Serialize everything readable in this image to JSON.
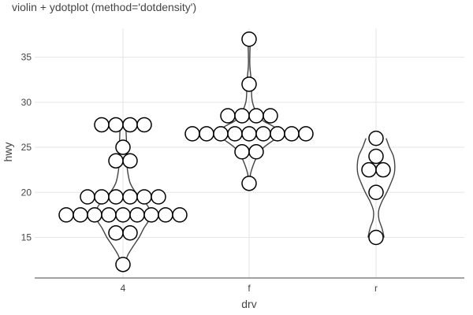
{
  "chart_data": {
    "type": "violin",
    "title": "violin + ydotplot (method='dotdensity')",
    "xlabel": "drv",
    "ylabel": "hwy",
    "categories": [
      "4",
      "f",
      "r"
    ],
    "ylim": [
      10.5,
      38.2
    ],
    "yticks": [
      15,
      20,
      25,
      30,
      35
    ],
    "grid": true,
    "legend": "none",
    "colors": {
      "grid": "#e5e5e5",
      "violin_stroke": "#444444",
      "dot_stroke": "#000000",
      "dot_fill": "#ffffff",
      "axis": "#444444"
    },
    "violins": [
      {
        "category": "4",
        "ymin": 12,
        "ymax": 27.5,
        "profile": [
          [
            12,
            0.15
          ],
          [
            13,
            0.35
          ],
          [
            14,
            0.75
          ],
          [
            15,
            1.2
          ],
          [
            16,
            1.55
          ],
          [
            17,
            1.95
          ],
          [
            18,
            2.0
          ],
          [
            19,
            1.6
          ],
          [
            20,
            0.95
          ],
          [
            21,
            0.55
          ],
          [
            22,
            0.38
          ],
          [
            23,
            0.3
          ],
          [
            24,
            0.3
          ],
          [
            25,
            0.28
          ],
          [
            26,
            0.25
          ],
          [
            27,
            0.22
          ],
          [
            27.5,
            0.2
          ]
        ]
      },
      {
        "category": "f",
        "ymin": 21,
        "ymax": 37,
        "profile": [
          [
            21,
            0.05
          ],
          [
            22,
            0.1
          ],
          [
            23,
            0.3
          ],
          [
            24,
            0.6
          ],
          [
            25,
            1.1
          ],
          [
            26,
            2.0
          ],
          [
            26.7,
            2.4
          ],
          [
            27.5,
            1.6
          ],
          [
            28,
            1.0
          ],
          [
            29,
            0.5
          ],
          [
            30,
            0.25
          ],
          [
            31,
            0.18
          ],
          [
            32,
            0.2
          ],
          [
            33,
            0.12
          ],
          [
            34,
            0.06
          ],
          [
            35,
            0.05
          ],
          [
            36,
            0.07
          ],
          [
            37,
            0.1
          ]
        ]
      },
      {
        "category": "r",
        "ymin": 15,
        "ymax": 26,
        "profile": [
          [
            15,
            0.6
          ],
          [
            16,
            0.45
          ],
          [
            17,
            0.22
          ],
          [
            18,
            0.2
          ],
          [
            19,
            0.45
          ],
          [
            20,
            0.8
          ],
          [
            21,
            1.1
          ],
          [
            22,
            1.35
          ],
          [
            23,
            1.4
          ],
          [
            24,
            1.3
          ],
          [
            25,
            1.0
          ],
          [
            26,
            0.75
          ]
        ]
      }
    ],
    "dots": [
      {
        "category": "4",
        "points": [
          {
            "y": 12,
            "offsets": [
              0
            ]
          },
          {
            "y": 15.5,
            "offsets": [
              -0.5,
              0.5
            ]
          },
          {
            "y": 17.5,
            "offsets": [
              -4,
              -3,
              -2,
              -1,
              0,
              1,
              2,
              3,
              4
            ]
          },
          {
            "y": 19.5,
            "offsets": [
              -2.5,
              -1.5,
              -0.5,
              0.5,
              1.5,
              2.5
            ]
          },
          {
            "y": 23.5,
            "offsets": [
              -0.5,
              0.5
            ]
          },
          {
            "y": 25,
            "offsets": [
              0
            ]
          },
          {
            "y": 27.5,
            "offsets": [
              -1.5,
              -0.5,
              0.5,
              1.5
            ]
          }
        ]
      },
      {
        "category": "f",
        "points": [
          {
            "y": 21,
            "offsets": [
              0
            ]
          },
          {
            "y": 24.5,
            "offsets": [
              -0.5,
              0.5
            ]
          },
          {
            "y": 26.5,
            "offsets": [
              -4,
              -3,
              -2,
              -1,
              0,
              1,
              2,
              3,
              4
            ]
          },
          {
            "y": 28.5,
            "offsets": [
              -1.5,
              -0.5,
              0.5,
              1.5
            ]
          },
          {
            "y": 32,
            "offsets": [
              0
            ]
          },
          {
            "y": 37,
            "offsets": [
              0
            ]
          }
        ]
      },
      {
        "category": "r",
        "points": [
          {
            "y": 15,
            "offsets": [
              0
            ]
          },
          {
            "y": 20,
            "offsets": [
              0
            ]
          },
          {
            "y": 22.5,
            "offsets": [
              -0.5,
              0.5
            ]
          },
          {
            "y": 24,
            "offsets": [
              0
            ]
          },
          {
            "y": 26,
            "offsets": [
              0
            ]
          }
        ]
      }
    ]
  }
}
